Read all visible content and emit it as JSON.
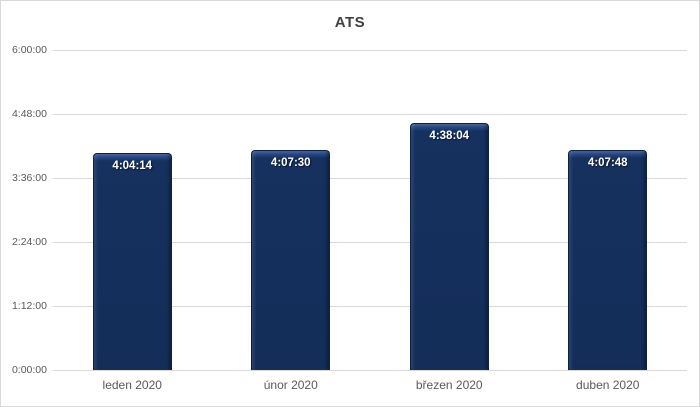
{
  "chart_data": {
    "type": "bar",
    "title": "ATS",
    "categories": [
      "leden 2020",
      "únor 2020",
      "březen 2020",
      "duben 2020"
    ],
    "values": [
      "4:04:14",
      "4:07:30",
      "4:38:04",
      "4:07:48"
    ],
    "values_seconds": [
      14654,
      14850,
      16684,
      14868
    ],
    "xlabel": "",
    "ylabel": "",
    "y_tick_labels": [
      "0:00:00",
      "1:12:00",
      "2:24:00",
      "3:36:00",
      "4:48:00",
      "6:00:00"
    ],
    "ylim": [
      "0:00:00",
      "6:00:00"
    ],
    "ylim_seconds": [
      0,
      21600
    ],
    "y_tick_interval_seconds": 4320,
    "grid": true,
    "legend": false,
    "colors": {
      "bar_fill": "#16315f",
      "bar_highlight": "#4e6da9",
      "bar_border": "#0c2145",
      "bar_label_text": "#ffffff",
      "gridline": "#d9d9d9",
      "axis_text": "#595959",
      "title_text": "#404040",
      "chart_border": "#d9d9d9",
      "background": "#ffffff"
    }
  }
}
